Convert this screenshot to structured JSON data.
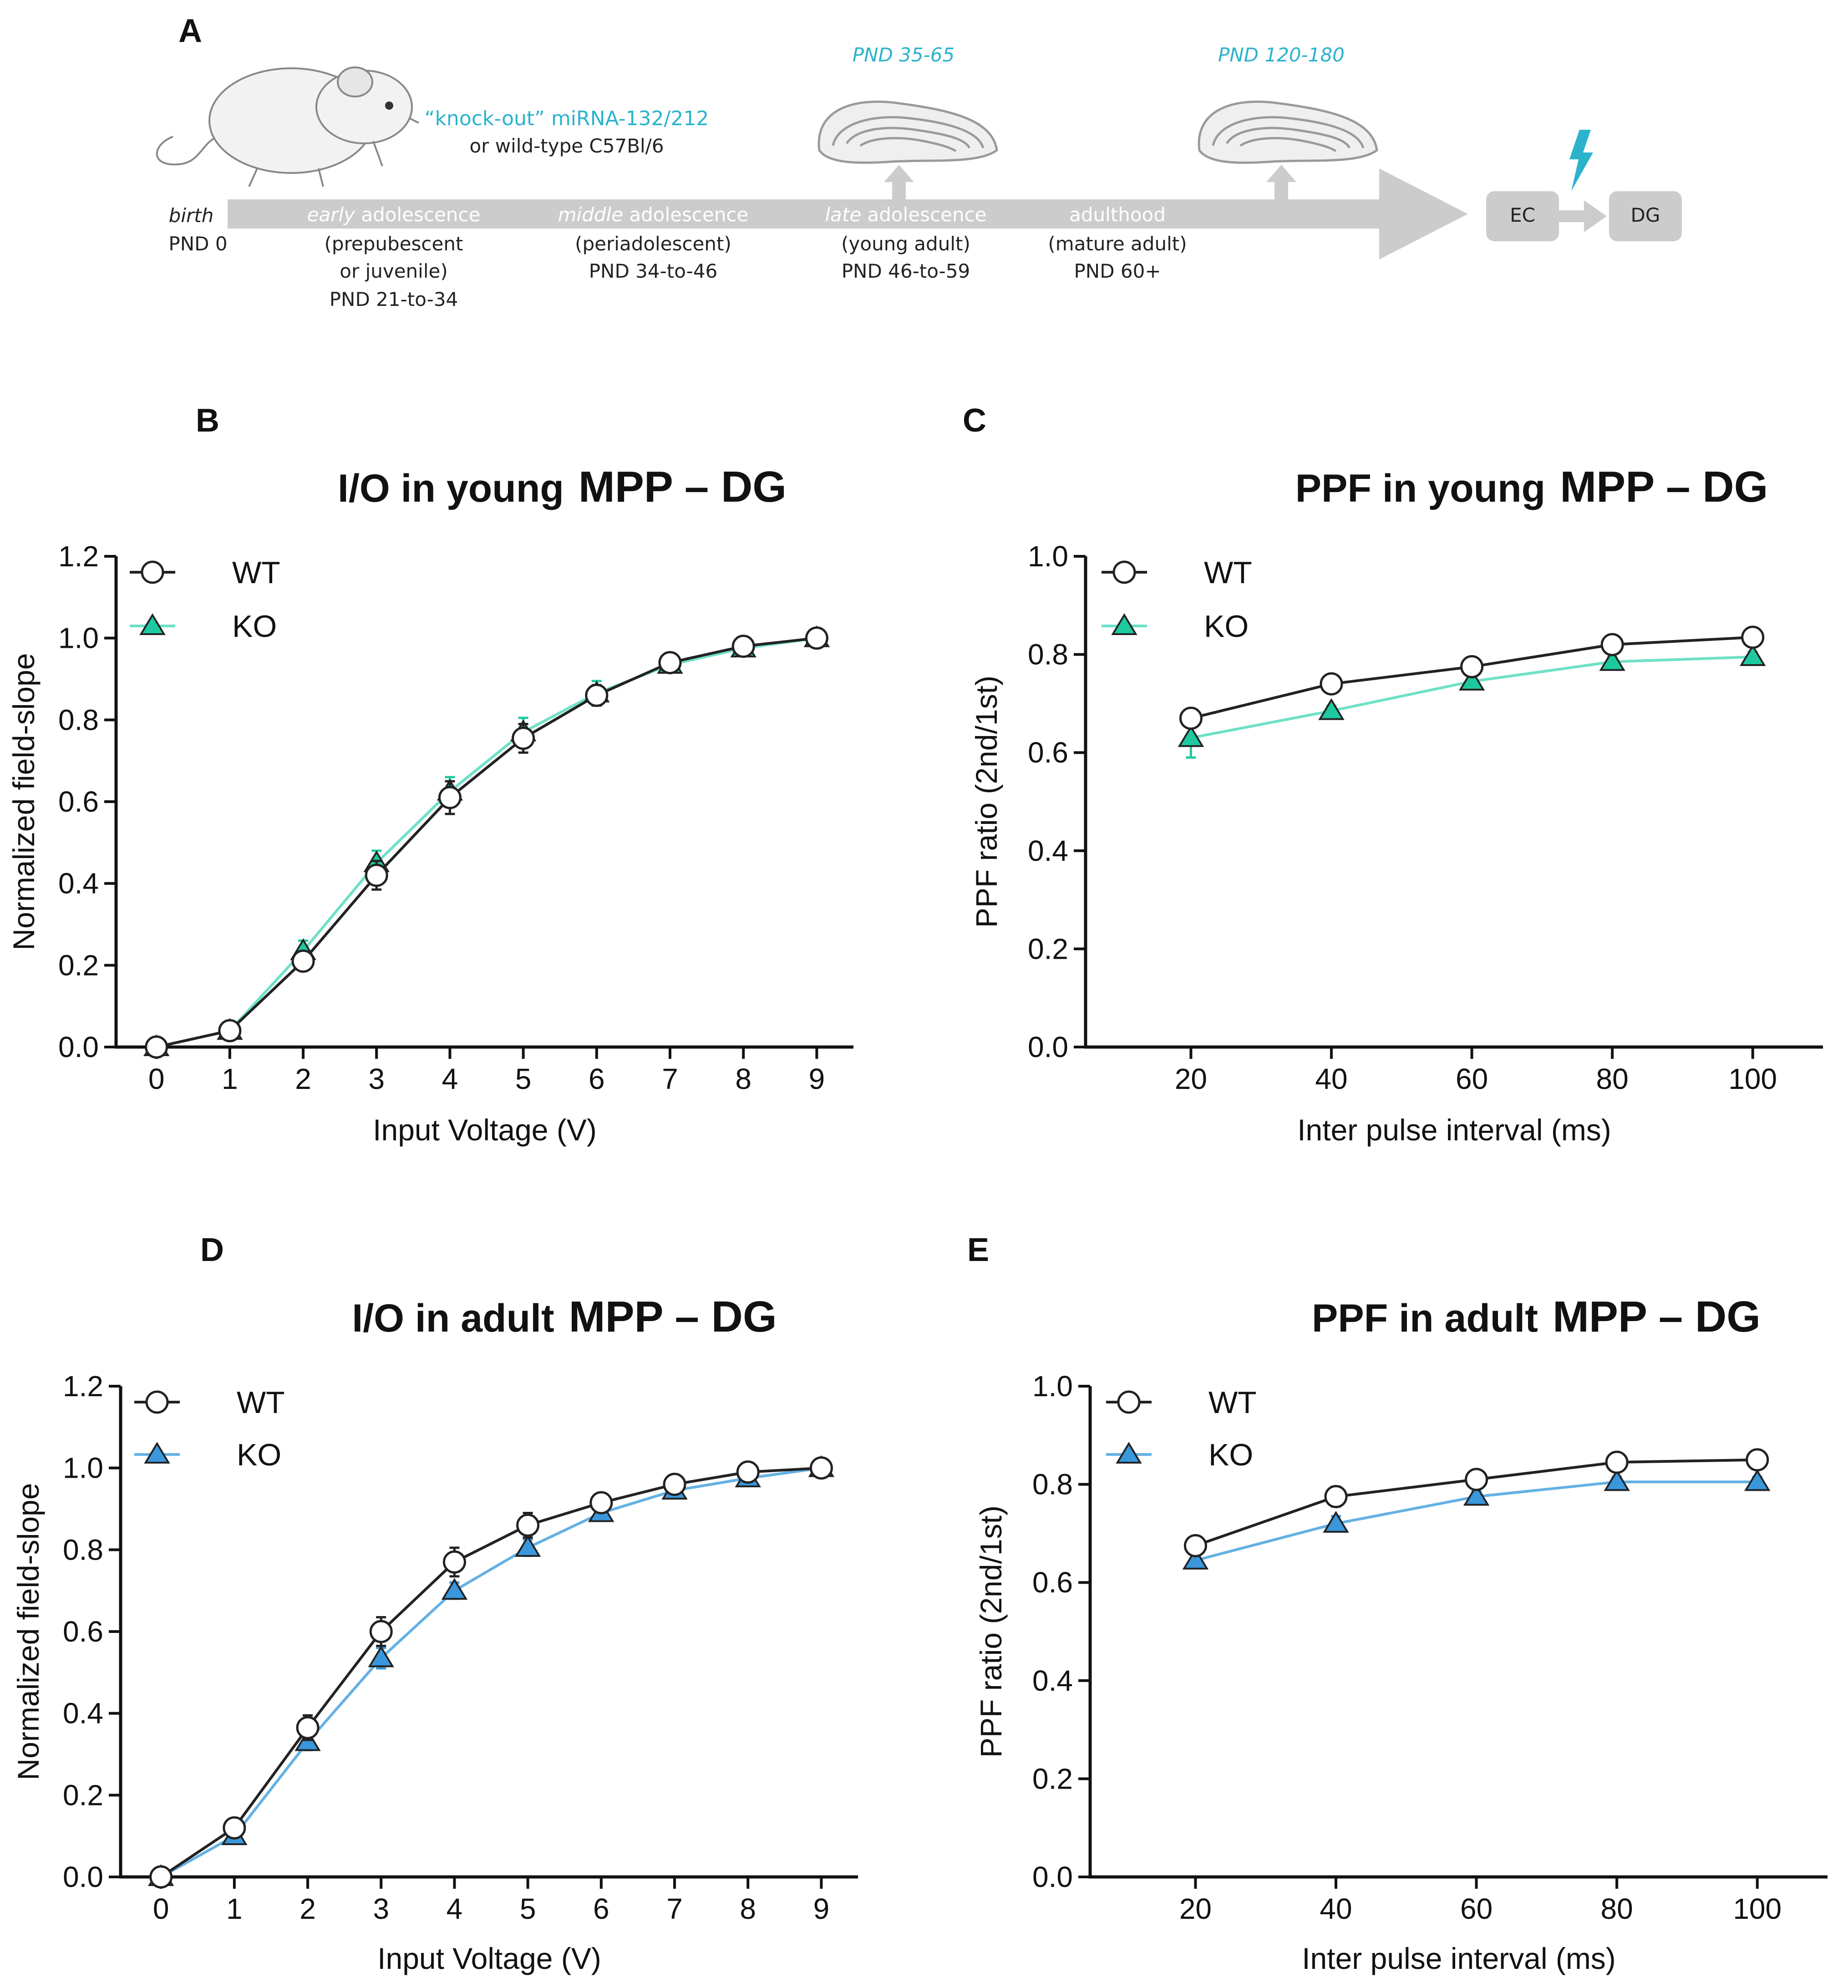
{
  "colors": {
    "timeline_gray": "#cccccc",
    "cyan": "#2bb3cc",
    "ko_young": "#1ec9a0",
    "ko_young_line": "#6fe0c8",
    "ko_adult": "#3a97db",
    "ko_adult_line": "#64b1e3",
    "wt": "#222222"
  },
  "panel_a": {
    "letter": "A",
    "genotype_line1": "“knock-out” miRNA-132/212",
    "genotype_line2": "or wild-type C57Bl/6",
    "young_window": "PND 35-65",
    "adult_window": "PND 120-180",
    "birth_label": "birth",
    "birth_pnd": "PND 0",
    "stages": [
      {
        "label_em": "early",
        "label_rest": " adolescence",
        "desc1": "(prepubescent",
        "desc2": "or juvenile)",
        "desc3": "PND 21-to-34"
      },
      {
        "label_em": "middle",
        "label_rest": " adolescence",
        "desc1": "(periadolescent)",
        "desc2": "PND 34-to-46",
        "desc3": ""
      },
      {
        "label_em": "late",
        "label_rest": " adolescence",
        "desc1": "(young adult)",
        "desc2": "PND 46-to-59",
        "desc3": ""
      },
      {
        "label_em": "",
        "label_rest": "adulthood",
        "desc1": "(mature adult)",
        "desc2": "PND 60+",
        "desc3": ""
      }
    ],
    "box_ec": "EC",
    "box_dg": "DG"
  },
  "chart_data": [
    {
      "id": "B",
      "type": "line",
      "panel_letter": "B",
      "title_part1": "I/O in young",
      "title_part2": "MPP – DG",
      "xlabel": "Input Voltage (V)",
      "ylabel": "Normalized field-slope",
      "x": [
        0,
        1,
        2,
        3,
        4,
        5,
        6,
        7,
        8,
        9
      ],
      "xticks": [
        "0",
        "1",
        "2",
        "3",
        "4",
        "5",
        "6",
        "7",
        "8",
        "9"
      ],
      "yticks": [
        "0.0",
        "0.2",
        "0.4",
        "0.6",
        "0.8",
        "1.0",
        "1.2"
      ],
      "xlim": [
        -0.55,
        9.5
      ],
      "ylim": [
        0,
        1.2
      ],
      "series": [
        {
          "name": "WT",
          "marker": "circle",
          "values": [
            0.0,
            0.04,
            0.21,
            0.42,
            0.61,
            0.755,
            0.86,
            0.94,
            0.98,
            1.0
          ],
          "errors": [
            0.01,
            0.01,
            0.02,
            0.035,
            0.04,
            0.035,
            0.025,
            0.015,
            0.01,
            0.0
          ]
        },
        {
          "name": "KO",
          "marker": "triangle",
          "values": [
            0.0,
            0.04,
            0.235,
            0.45,
            0.625,
            0.77,
            0.865,
            0.935,
            0.975,
            1.0
          ],
          "errors": [
            0.01,
            0.01,
            0.025,
            0.03,
            0.035,
            0.035,
            0.03,
            0.015,
            0.01,
            0.0
          ]
        }
      ]
    },
    {
      "id": "C",
      "type": "line",
      "panel_letter": "C",
      "title_part1": "PPF in young",
      "title_part2": "MPP – DG",
      "xlabel": "Inter pulse interval (ms)",
      "ylabel": "PPF ratio (2nd/1st)",
      "x": [
        20,
        40,
        60,
        80,
        100
      ],
      "xticks": [
        "20",
        "40",
        "60",
        "80",
        "100"
      ],
      "yticks": [
        "0.0",
        "0.2",
        "0.4",
        "0.6",
        "0.8",
        "1.0"
      ],
      "xlim": [
        5,
        110
      ],
      "ylim": [
        0,
        1.0
      ],
      "series": [
        {
          "name": "WT",
          "marker": "circle",
          "values": [
            0.67,
            0.74,
            0.775,
            0.82,
            0.835
          ],
          "errors": [
            0.015,
            0.01,
            0.01,
            0.01,
            0.01
          ]
        },
        {
          "name": "KO",
          "marker": "triangle",
          "values": [
            0.63,
            0.685,
            0.745,
            0.785,
            0.795
          ],
          "errors": [
            0.04,
            0.01,
            0.01,
            0.01,
            0.01
          ]
        }
      ]
    },
    {
      "id": "D",
      "type": "line",
      "panel_letter": "D",
      "title_part1": "I/O in adult",
      "title_part2": "MPP – DG",
      "xlabel": "Input Voltage (V)",
      "ylabel": "Normalized field-slope",
      "x": [
        0,
        1,
        2,
        3,
        4,
        5,
        6,
        7,
        8,
        9
      ],
      "xticks": [
        "0",
        "1",
        "2",
        "3",
        "4",
        "5",
        "6",
        "7",
        "8",
        "9"
      ],
      "yticks": [
        "0.0",
        "0.2",
        "0.4",
        "0.6",
        "0.8",
        "1.0",
        "1.2"
      ],
      "xlim": [
        -0.55,
        9.5
      ],
      "ylim": [
        0,
        1.2
      ],
      "series": [
        {
          "name": "WT",
          "marker": "circle",
          "values": [
            0.0,
            0.12,
            0.365,
            0.6,
            0.77,
            0.86,
            0.915,
            0.96,
            0.99,
            1.0
          ],
          "errors": [
            0.01,
            0.015,
            0.03,
            0.035,
            0.035,
            0.03,
            0.02,
            0.015,
            0.01,
            0.0
          ]
        },
        {
          "name": "KO",
          "marker": "triangle",
          "values": [
            0.0,
            0.1,
            0.33,
            0.535,
            0.7,
            0.805,
            0.89,
            0.945,
            0.975,
            1.0
          ],
          "errors": [
            0.01,
            0.01,
            0.02,
            0.025,
            0.02,
            0.02,
            0.015,
            0.01,
            0.01,
            0.0
          ]
        }
      ]
    },
    {
      "id": "E",
      "type": "line",
      "panel_letter": "E",
      "title_part1": "PPF in adult",
      "title_part2": "MPP – DG",
      "xlabel": "Inter pulse interval (ms)",
      "ylabel": "PPF ratio (2nd/1st)",
      "x": [
        20,
        40,
        60,
        80,
        100
      ],
      "xticks": [
        "20",
        "40",
        "60",
        "80",
        "100"
      ],
      "yticks": [
        "0.0",
        "0.2",
        "0.4",
        "0.6",
        "0.8",
        "1.0"
      ],
      "xlim": [
        5,
        110
      ],
      "ylim": [
        0,
        1.0
      ],
      "series": [
        {
          "name": "WT",
          "marker": "circle",
          "values": [
            0.675,
            0.775,
            0.81,
            0.845,
            0.85
          ],
          "errors": [
            0.015,
            0.02,
            0.015,
            0.015,
            0.01
          ]
        },
        {
          "name": "KO",
          "marker": "triangle",
          "values": [
            0.645,
            0.72,
            0.775,
            0.805,
            0.805
          ],
          "errors": [
            0.015,
            0.015,
            0.01,
            0.01,
            0.01
          ]
        }
      ]
    }
  ]
}
